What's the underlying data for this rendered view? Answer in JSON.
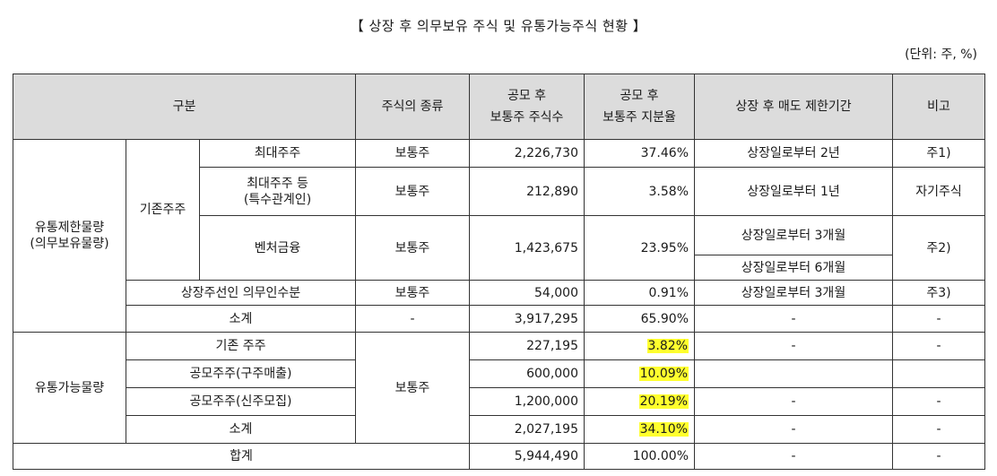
{
  "title": "【 상장 후 의무보유 주식 및 유통가능주식 현황 】",
  "unit": "(단위: 주, %)",
  "headers": {
    "category": "구분",
    "share_type": "주식의 종류",
    "shares_l1": "공모 후",
    "shares_l2": "보통주 주식수",
    "ratio_l1": "공모 후",
    "ratio_l2": "보통주 지분율",
    "period": "상장 후 매도 제한기간",
    "note": "비고"
  },
  "restricted": {
    "group_l1": "유통제한물량",
    "group_l2": "(의무보유물량)",
    "existing": "기존주주",
    "rows": [
      {
        "name": "최대주주",
        "type": "보통주",
        "shares": "2,226,730",
        "ratio": "37.46%",
        "period": "상장일로부터 2년",
        "note": "주1)"
      },
      {
        "name_l1": "최대주주 등",
        "name_l2": "(특수관계인)",
        "type": "보통주",
        "shares": "212,890",
        "ratio": "3.58%",
        "period": "상장일로부터 1년",
        "note": "자기주식"
      },
      {
        "name": "벤처금융",
        "type": "보통주",
        "shares": "1,423,675",
        "ratio": "23.95%",
        "period_a": "상장일로부터 3개월",
        "period_b": "상장일로부터 6개월",
        "note": "주2)"
      }
    ],
    "underwriter": {
      "name": "상장주선인 의무인수분",
      "type": "보통주",
      "shares": "54,000",
      "ratio": "0.91%",
      "period": "상장일로부터 3개월",
      "note": "주3)"
    },
    "subtotal": {
      "name": "소계",
      "type": "-",
      "shares": "3,917,295",
      "ratio": "65.90%",
      "period": "-",
      "note": "-"
    }
  },
  "tradable": {
    "group": "유통가능물량",
    "type": "보통주",
    "rows": [
      {
        "name": "기존 주주",
        "shares": "227,195",
        "ratio": "3.82%",
        "period": "-",
        "note": "-"
      },
      {
        "name": "공모주주(구주매출)",
        "shares": "600,000",
        "ratio": "10.09%",
        "period": "",
        "note": ""
      },
      {
        "name": "공모주주(신주모집)",
        "shares": "1,200,000",
        "ratio": "20.19%",
        "period": "-",
        "note": "-"
      },
      {
        "name": "소계",
        "shares": "2,027,195",
        "ratio": "34.10%",
        "period": "-",
        "note": "-"
      }
    ]
  },
  "total": {
    "name": "합계",
    "shares": "5,944,490",
    "ratio": "100.00%",
    "period": "-",
    "note": "-"
  },
  "colors": {
    "header_bg": "#dcdcdc",
    "highlight": "#ffff2e",
    "border": "#333333"
  }
}
